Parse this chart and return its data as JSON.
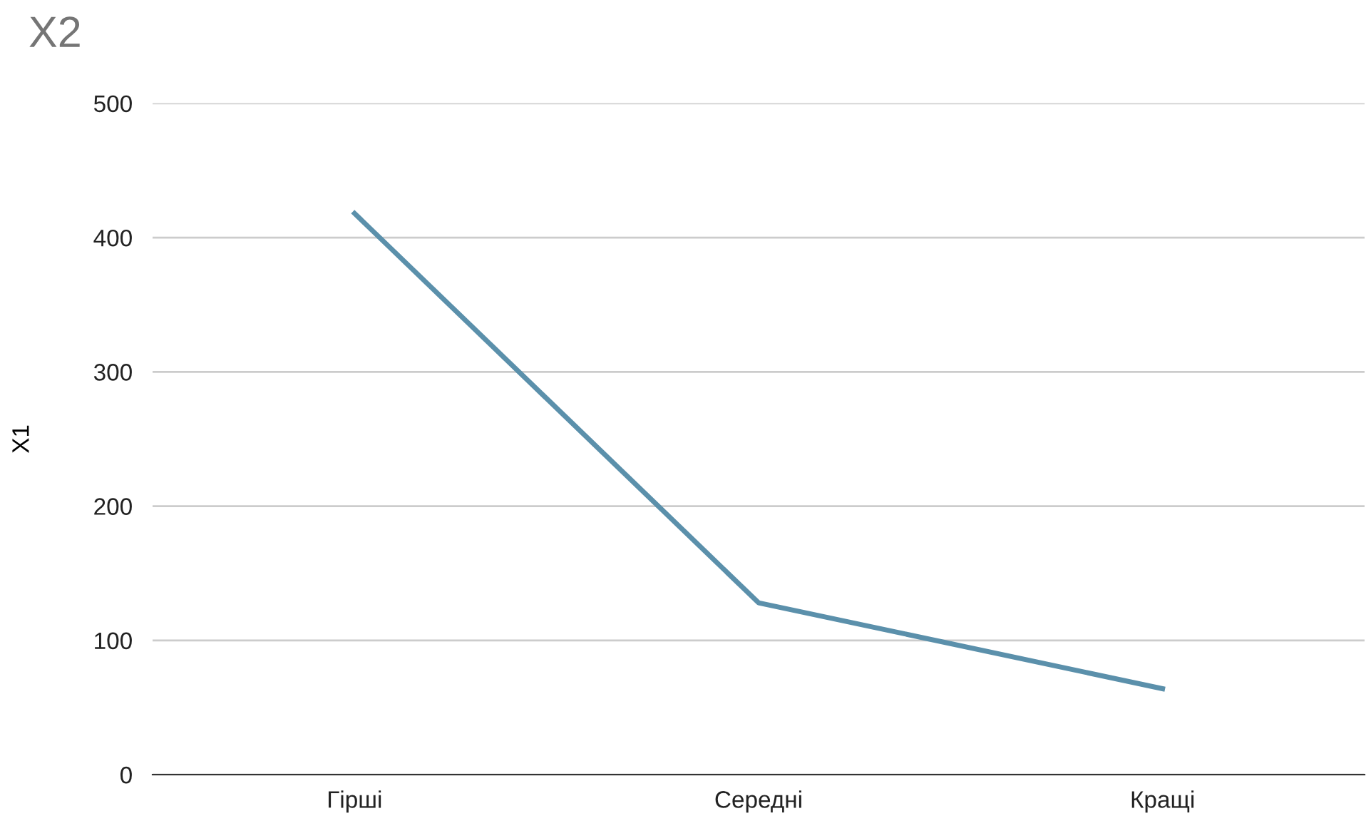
{
  "chart_data": {
    "type": "line",
    "title": "X2",
    "ylabel": "X1",
    "categories": [
      "Гірші",
      "Середні",
      "Кращі"
    ],
    "series": [
      {
        "color": "#5b90ab",
        "values": [
          418,
          128,
          64
        ]
      }
    ],
    "ylim": [
      0,
      500
    ],
    "yticks": [
      0,
      100,
      200,
      300,
      400,
      500
    ],
    "grid": "y",
    "legend": false,
    "marker": "none",
    "line_style": "solid"
  }
}
